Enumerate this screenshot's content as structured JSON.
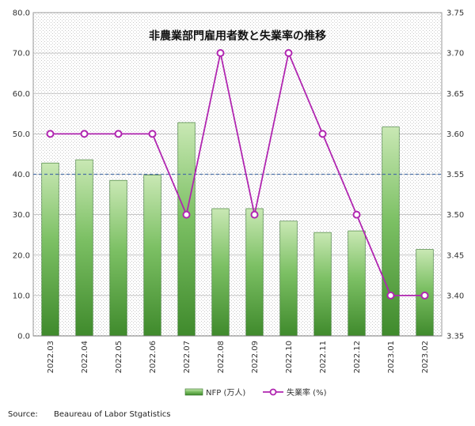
{
  "chart_data": {
    "type": "bar",
    "title": "非農業部門雇用者数と失業率の推移",
    "categories": [
      "2022.03",
      "2022.04",
      "2022.05",
      "2022.06",
      "2022.07",
      "2022.08",
      "2022.09",
      "2022.10",
      "2022.11",
      "2022.12",
      "2023.01",
      "2023.02"
    ],
    "series": [
      {
        "name": "NFP (万人)",
        "type": "bar",
        "axis": "left",
        "values": [
          42.8,
          43.6,
          38.5,
          39.8,
          52.8,
          31.5,
          31.5,
          28.4,
          25.6,
          26.0,
          51.7,
          21.4
        ]
      },
      {
        "name": "失業率 (%)",
        "type": "line",
        "axis": "right",
        "values": [
          3.6,
          3.6,
          3.6,
          3.6,
          3.5,
          3.7,
          3.5,
          3.7,
          3.6,
          3.5,
          3.4,
          3.4
        ]
      }
    ],
    "y_left": {
      "min": 0,
      "max": 80,
      "step": 10,
      "ticks": [
        "0.0",
        "10.0",
        "20.0",
        "30.0",
        "40.0",
        "50.0",
        "60.0",
        "70.0",
        "80.0"
      ]
    },
    "y_right": {
      "min": 3.35,
      "max": 3.75,
      "step": 0.05,
      "ticks": [
        "3.35",
        "3.40",
        "3.45",
        "3.50",
        "3.55",
        "3.60",
        "3.65",
        "3.70",
        "3.75"
      ]
    },
    "reference_line": {
      "axis": "left",
      "value": 40
    },
    "legend_position": "bottom-center",
    "grid": true,
    "colors": {
      "bar_top": "#c9e8b4",
      "bar_mid": "#7cc064",
      "bar_bottom": "#3f8a2c",
      "bar_edge": "#2f6e24",
      "line": "#b026b0",
      "marker_fill": "#ffffff",
      "reference": "#4a6fa5"
    }
  },
  "source_label": "Source:",
  "source_text": "Beaureau of Labor Stgatistics"
}
